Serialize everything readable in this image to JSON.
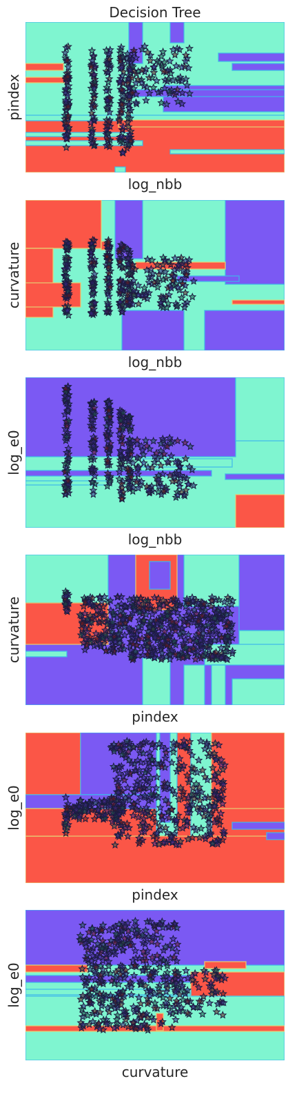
{
  "figure_title": "Decision Tree",
  "colors": {
    "class_0": "#7b59f3",
    "class_1": "#7ff5d0",
    "class_2": "#fb5647",
    "boundary_mid": "#3fb6ea",
    "boundary_warm": "#e6cf73",
    "marker_edge": "#1b1c3f"
  },
  "chart_data": [
    {
      "type": "scatter",
      "title": "Decision Tree",
      "xlabel": "log_nbb",
      "ylabel": "pindex",
      "x_ticks_visible": false,
      "y_ticks_visible": false,
      "grid": false,
      "marker": "star",
      "background": "decision-regions",
      "point_clusters": [
        {
          "x": 0.16,
          "y_range": [
            0.16,
            0.84
          ],
          "n": 60,
          "spread_x": 0.008
        },
        {
          "x": 0.26,
          "y_range": [
            0.16,
            0.84
          ],
          "n": 50,
          "spread_x": 0.008
        },
        {
          "x": 0.32,
          "y_range": [
            0.16,
            0.84
          ],
          "n": 50,
          "spread_x": 0.008
        },
        {
          "x": 0.37,
          "y_range": [
            0.12,
            0.84
          ],
          "n": 50,
          "spread_x": 0.008
        },
        {
          "x": 0.4,
          "y_range": [
            0.16,
            0.84
          ],
          "n": 45,
          "spread_x": 0.008
        },
        {
          "x": 0.52,
          "y_range": [
            0.45,
            0.84
          ],
          "n": 90,
          "spread_x": 0.12
        }
      ]
    },
    {
      "type": "scatter",
      "xlabel": "log_nbb",
      "ylabel": "curvature",
      "x_ticks_visible": false,
      "y_ticks_visible": false,
      "grid": false,
      "marker": "star",
      "background": "decision-regions",
      "point_clusters": [
        {
          "x": 0.16,
          "y_range": [
            0.23,
            0.74
          ],
          "n": 60,
          "spread_x": 0.008
        },
        {
          "x": 0.26,
          "y_range": [
            0.23,
            0.74
          ],
          "n": 50,
          "spread_x": 0.008
        },
        {
          "x": 0.32,
          "y_range": [
            0.25,
            0.74
          ],
          "n": 50,
          "spread_x": 0.008
        },
        {
          "x": 0.37,
          "y_range": [
            0.25,
            0.72
          ],
          "n": 45,
          "spread_x": 0.008
        },
        {
          "x": 0.4,
          "y_range": [
            0.3,
            0.68
          ],
          "n": 40,
          "spread_x": 0.008
        },
        {
          "x": 0.52,
          "y_range": [
            0.28,
            0.62
          ],
          "n": 110,
          "spread_x": 0.13
        }
      ]
    },
    {
      "type": "scatter",
      "xlabel": "log_nbb",
      "ylabel": "log_e0",
      "x_ticks_visible": false,
      "y_ticks_visible": false,
      "grid": false,
      "marker": "star",
      "background": "decision-regions",
      "point_clusters": [
        {
          "x": 0.16,
          "y_range": [
            0.22,
            0.95
          ],
          "n": 65,
          "spread_x": 0.008
        },
        {
          "x": 0.26,
          "y_range": [
            0.22,
            0.85
          ],
          "n": 50,
          "spread_x": 0.008
        },
        {
          "x": 0.32,
          "y_range": [
            0.22,
            0.85
          ],
          "n": 50,
          "spread_x": 0.008
        },
        {
          "x": 0.37,
          "y_range": [
            0.18,
            0.8
          ],
          "n": 45,
          "spread_x": 0.008
        },
        {
          "x": 0.4,
          "y_range": [
            0.25,
            0.75
          ],
          "n": 40,
          "spread_x": 0.008
        },
        {
          "x": 0.52,
          "y_range": [
            0.2,
            0.6
          ],
          "n": 110,
          "spread_x": 0.13
        }
      ]
    },
    {
      "type": "scatter",
      "xlabel": "pindex",
      "ylabel": "curvature",
      "x_ticks_visible": false,
      "y_ticks_visible": false,
      "grid": false,
      "marker": "star",
      "background": "decision-regions",
      "point_clusters": [
        {
          "x": 0.16,
          "y_range": [
            0.62,
            0.76
          ],
          "n": 20,
          "spread_x": 0.008
        },
        {
          "x": 0.3,
          "y_range": [
            0.35,
            0.72
          ],
          "n": 150,
          "spread_x": 0.09
        },
        {
          "x": 0.6,
          "y_range": [
            0.3,
            0.72
          ],
          "n": 420,
          "spread_x": 0.2
        }
      ]
    },
    {
      "type": "scatter",
      "xlabel": "pindex",
      "ylabel": "log_e0",
      "x_ticks_visible": false,
      "y_ticks_visible": false,
      "grid": false,
      "marker": "star",
      "background": "decision-regions",
      "point_clusters": [
        {
          "x": 0.16,
          "y_range": [
            0.32,
            0.58
          ],
          "n": 20,
          "spread_x": 0.008
        },
        {
          "x": 0.28,
          "y_range": [
            0.42,
            0.56
          ],
          "n": 90,
          "spread_x": 0.1
        },
        {
          "x": 0.55,
          "y_range": [
            0.25,
            0.95
          ],
          "n": 380,
          "spread_x": 0.22
        }
      ]
    },
    {
      "type": "scatter",
      "xlabel": "curvature",
      "ylabel": "log_e0",
      "x_ticks_visible": false,
      "y_ticks_visible": false,
      "grid": false,
      "marker": "star",
      "background": "decision-regions",
      "point_clusters": [
        {
          "x": 0.4,
          "y_range": [
            0.2,
            0.93
          ],
          "n": 380,
          "spread_x": 0.19
        },
        {
          "x": 0.65,
          "y_range": [
            0.3,
            0.6
          ],
          "n": 80,
          "spread_x": 0.12
        }
      ]
    }
  ]
}
